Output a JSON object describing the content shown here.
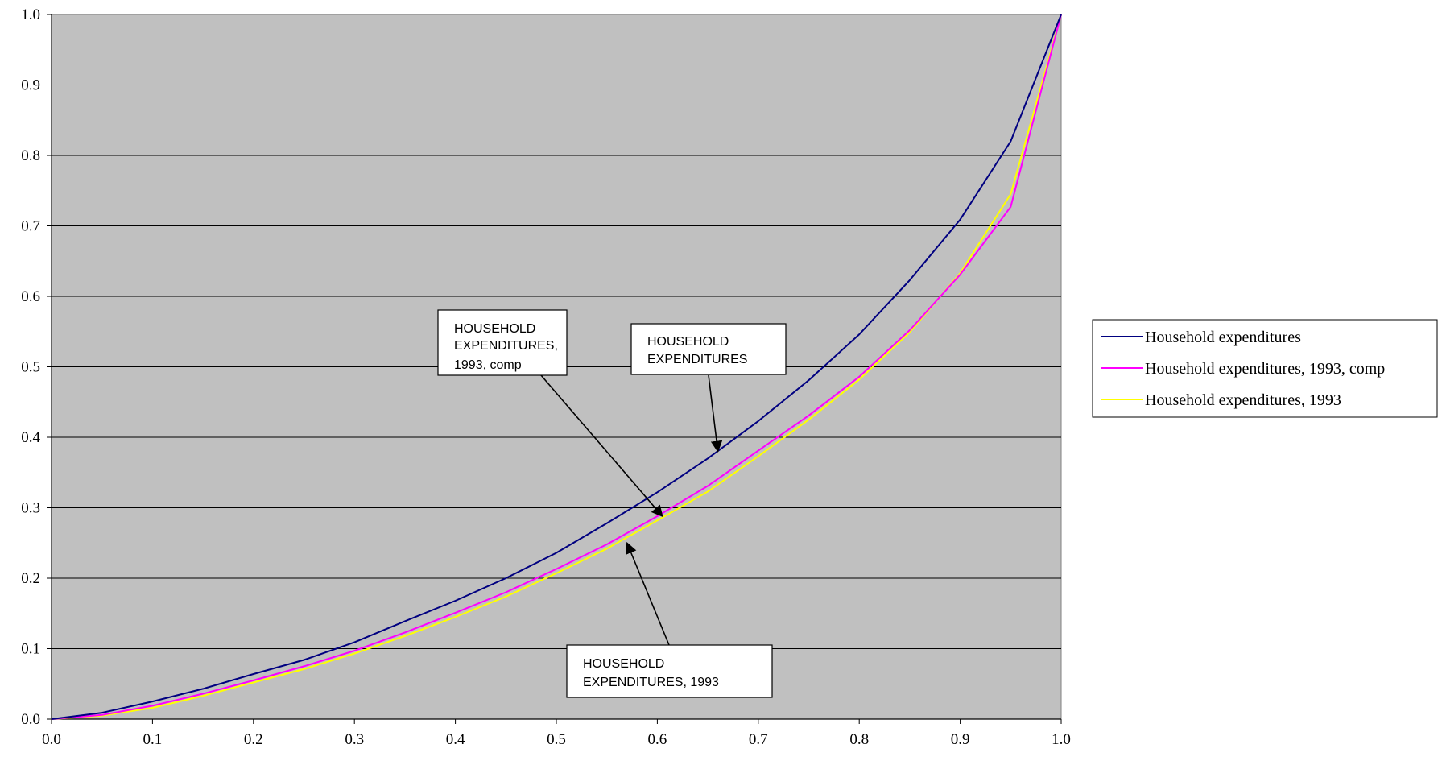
{
  "chart_data": {
    "type": "line",
    "title": "",
    "xlabel": "",
    "ylabel": "",
    "xlim": [
      0.0,
      1.0
    ],
    "ylim": [
      0.0,
      1.0
    ],
    "x_ticks": [
      "0.0",
      "0.1",
      "0.2",
      "0.3",
      "0.4",
      "0.5",
      "0.6",
      "0.7",
      "0.8",
      "0.9",
      "1.0"
    ],
    "y_ticks": [
      "0.0",
      "0.1",
      "0.2",
      "0.3",
      "0.4",
      "0.5",
      "0.6",
      "0.7",
      "0.8",
      "0.9",
      "1.0"
    ],
    "grid": "horizontal",
    "plot_background": "#c0c0c0",
    "legend_position": "right",
    "x": [
      0.0,
      0.05,
      0.1,
      0.15,
      0.2,
      0.25,
      0.3,
      0.35,
      0.4,
      0.45,
      0.5,
      0.55,
      0.6,
      0.65,
      0.7,
      0.75,
      0.8,
      0.85,
      0.9,
      0.95,
      1.0
    ],
    "series": [
      {
        "name": "Household expenditures",
        "color": "#000080",
        "values": [
          0.0,
          0.009,
          0.025,
          0.043,
          0.064,
          0.084,
          0.109,
          0.139,
          0.168,
          0.2,
          0.236,
          0.278,
          0.322,
          0.37,
          0.423,
          0.481,
          0.546,
          0.623,
          0.709,
          0.82,
          1.0
        ]
      },
      {
        "name": "Household expenditures, 1993, comp",
        "color": "#ff00ff",
        "values": [
          0.0,
          0.006,
          0.019,
          0.036,
          0.055,
          0.075,
          0.097,
          0.123,
          0.151,
          0.18,
          0.213,
          0.248,
          0.288,
          0.331,
          0.381,
          0.431,
          0.486,
          0.552,
          0.631,
          0.727,
          1.0
        ]
      },
      {
        "name": "Household expenditures, 1993",
        "color": "#ffff00",
        "values": [
          0.0,
          0.005,
          0.016,
          0.033,
          0.052,
          0.071,
          0.093,
          0.118,
          0.145,
          0.174,
          0.207,
          0.242,
          0.282,
          0.323,
          0.373,
          0.425,
          0.482,
          0.549,
          0.633,
          0.745,
          1.0
        ]
      }
    ],
    "annotations": [
      {
        "text_lines": [
          "HOUSEHOLD",
          "EXPENDITURES,",
          "1993, comp"
        ],
        "arrow_target": [
          0.605,
          0.288
        ]
      },
      {
        "text_lines": [
          "HOUSEHOLD",
          "EXPENDITURES"
        ],
        "arrow_target": [
          0.66,
          0.38
        ]
      },
      {
        "text_lines": [
          "HOUSEHOLD",
          "EXPENDITURES, 1993"
        ],
        "arrow_target": [
          0.57,
          0.25
        ]
      }
    ]
  }
}
